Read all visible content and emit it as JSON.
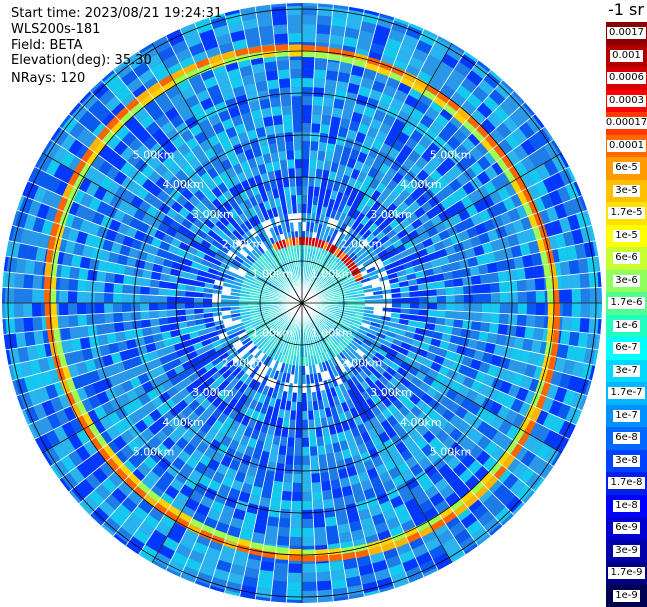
{
  "info": {
    "start_time": "Start time: 2023/08/21 19:24:31",
    "instrument": "WLS200s-181",
    "field": "Field: BETA",
    "elevation": "Elevation(deg): 35.30",
    "nrays": "NRays: 120"
  },
  "unit_label": "-1 sr",
  "range_labels": [
    "1.00km",
    "2.00km",
    "3.00km",
    "4.00km",
    "5.00km"
  ],
  "colorbar": {
    "labels": [
      "0.0017",
      "0.001",
      "0.0006",
      "0.0003",
      "0.00017",
      "0.0001",
      "6e-5",
      "3e-5",
      "1.7e-5",
      "1e-5",
      "6e-6",
      "3e-6",
      "1.7e-6",
      "1e-6",
      "6e-7",
      "3e-7",
      "1.7e-7",
      "1e-7",
      "6e-8",
      "3e-8",
      "1.7e-8",
      "1e-8",
      "6e-9",
      "3e-9",
      "1.7e-9",
      "1e-9"
    ],
    "colors": [
      "#8b0000",
      "#b00000",
      "#d80000",
      "#ff0000",
      "#ff3a00",
      "#ff6a00",
      "#ff9a00",
      "#ffc000",
      "#ffe000",
      "#ffff00",
      "#c8ff30",
      "#90ff60",
      "#50ff90",
      "#20ffc0",
      "#00ffff",
      "#00d8ff",
      "#00b8ff",
      "#0090ff",
      "#0068ff",
      "#0040ff",
      "#0020e8",
      "#0000ff",
      "#0000d0",
      "#0000a8",
      "#000080",
      "#000050"
    ]
  }
}
